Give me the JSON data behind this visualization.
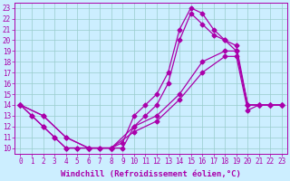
{
  "background_color": "#cceeff",
  "grid_color": "#99cccc",
  "line_color": "#aa00aa",
  "marker": "D",
  "markersize": 2.5,
  "linewidth": 0.9,
  "xlabel": "Windchill (Refroidissement éolien,°C)",
  "xlabel_fontsize": 6.5,
  "tick_fontsize": 5.5,
  "xlim": [
    -0.5,
    23.5
  ],
  "ylim": [
    9.5,
    23.5
  ],
  "xticks": [
    0,
    1,
    2,
    3,
    4,
    5,
    6,
    7,
    8,
    9,
    10,
    11,
    12,
    13,
    14,
    15,
    16,
    17,
    18,
    19,
    20,
    21,
    22,
    23
  ],
  "yticks": [
    10,
    11,
    12,
    13,
    14,
    15,
    16,
    17,
    18,
    19,
    20,
    21,
    22,
    23
  ],
  "curves": [
    {
      "x": [
        0,
        1,
        2,
        3,
        4,
        5,
        6,
        7,
        8,
        9,
        10,
        11,
        12,
        13,
        14,
        15,
        16,
        17,
        18,
        19,
        20,
        21,
        22,
        23
      ],
      "y": [
        14,
        13,
        12,
        11,
        10,
        10,
        10,
        10,
        10,
        10.5,
        13,
        14,
        15,
        17,
        21,
        23,
        22.5,
        21,
        20,
        19.5,
        14,
        14,
        14,
        14
      ]
    },
    {
      "x": [
        0,
        1,
        2,
        3,
        4,
        5,
        6,
        7,
        8,
        9,
        10,
        11,
        12,
        13,
        14,
        15,
        16,
        17,
        18,
        19,
        20,
        21,
        22,
        23
      ],
      "y": [
        14,
        13,
        12,
        11,
        10,
        10,
        10,
        10,
        10,
        10,
        12,
        13,
        14,
        16,
        20,
        22.5,
        21.5,
        20.5,
        20,
        19,
        14,
        14,
        14,
        14
      ]
    },
    {
      "x": [
        0,
        2,
        4,
        6,
        8,
        10,
        12,
        14,
        16,
        18,
        19,
        20,
        21,
        22,
        23
      ],
      "y": [
        14,
        13,
        11,
        10,
        10,
        12,
        13,
        15,
        18,
        19,
        19,
        14,
        14,
        14,
        14
      ]
    },
    {
      "x": [
        0,
        2,
        4,
        6,
        8,
        10,
        12,
        14,
        16,
        18,
        19,
        20,
        21,
        22,
        23
      ],
      "y": [
        14,
        13,
        11,
        10,
        10,
        11.5,
        12.5,
        14.5,
        17,
        18.5,
        18.5,
        13.5,
        14,
        14,
        14
      ]
    }
  ]
}
